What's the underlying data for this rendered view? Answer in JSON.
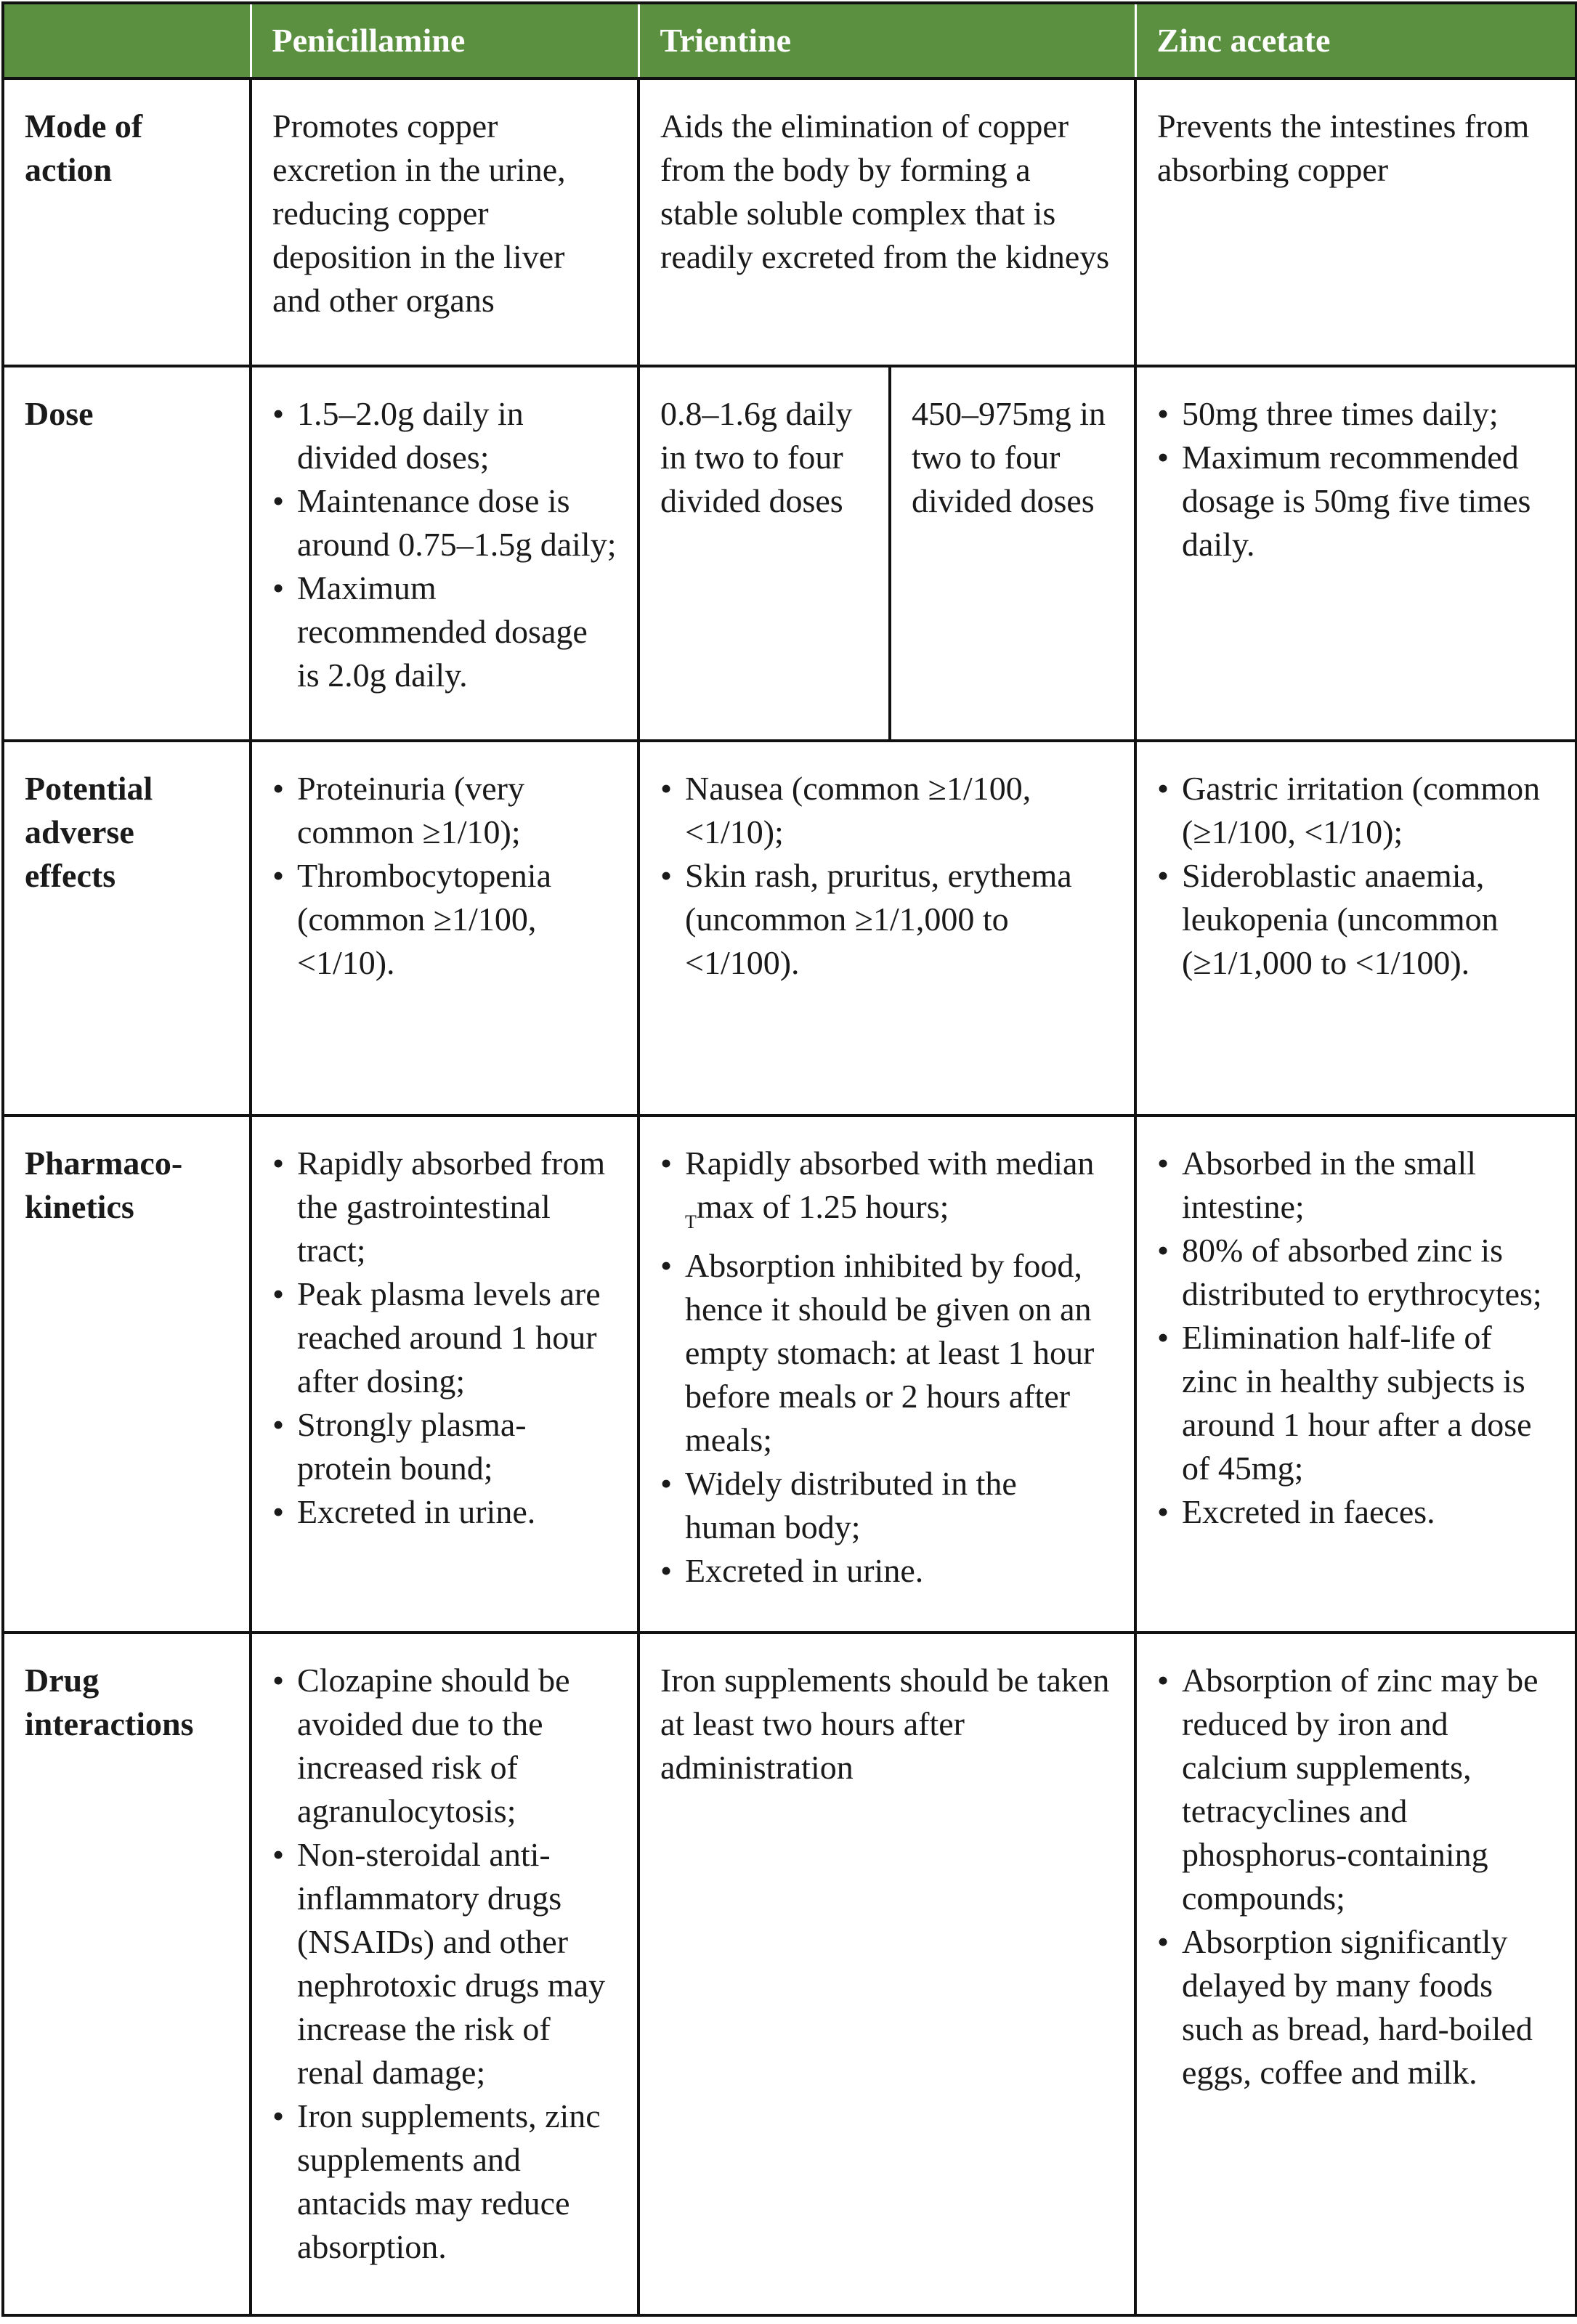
{
  "header": {
    "corner": "",
    "columns": [
      "Penicillamine",
      "Trientine",
      "Zinc acetate"
    ]
  },
  "rows": [
    {
      "label": "Mode of action",
      "cells": [
        {
          "text": "Promotes copper excretion in the urine, reducing copper deposition in the liver and other organs"
        },
        {
          "text": "Aids the elimination of copper from the body by forming a stable soluble complex that is readily excreted from the kidneys"
        },
        {
          "text": "Prevents the intestines from absorbing copper"
        }
      ]
    },
    {
      "label": "Dose",
      "cells": [
        {
          "bullets": [
            "1.5–2.0g daily in divided doses;",
            "Maintenance dose is around 0.75–1.5g daily;",
            "Maximum recommended dosage is 2.0g daily."
          ]
        },
        {
          "split": [
            "0.8–1.6g daily in two to four divided doses",
            "450–975mg in two to four divided doses"
          ]
        },
        {
          "bullets": [
            "50mg three times daily;",
            "Maximum recommended dosage is 50mg five times daily."
          ]
        }
      ]
    },
    {
      "label": "Potential adverse effects",
      "cells": [
        {
          "bullets": [
            "Proteinuria (very common ≥1/10);",
            "Thrombocytopenia (common ≥1/100, <1/10)."
          ]
        },
        {
          "bullets": [
            "Nausea (common ≥1/100, <1/10);",
            "Skin rash, pruritus, erythema (uncommon ≥1/1,000 to <1/100)."
          ]
        },
        {
          "bullets": [
            "Gastric irritation (common (≥1/100, <1/10);",
            "Sideroblastic anaemia, leukopenia (uncommon (≥1/1,000 to <1/100)."
          ]
        }
      ]
    },
    {
      "label": "Pharmaco-kinetics",
      "cells": [
        {
          "bullets": [
            "Rapidly absorbed from the gastrointestinal tract;",
            "Peak plasma levels are reached around 1 hour after dosing;",
            "Strongly plasma-protein bound;",
            "Excreted in urine."
          ]
        },
        {
          "bullets": [
            "Rapidly absorbed with median Tmax of 1.25 hours;",
            "Absorption inhibited by food, hence it should be given on an empty stomach: at least 1 hour before meals or 2 hours after meals;",
            "Widely distributed in the human body;",
            "Excreted in urine."
          ]
        },
        {
          "bullets": [
            "Absorbed in the small intestine;",
            "80% of absorbed zinc is distributed to erythrocytes;",
            "Elimination half-life of zinc in healthy subjects is around 1 hour after a dose of 45mg;",
            "Excreted in faeces."
          ]
        }
      ]
    },
    {
      "label": "Drug interactions",
      "cells": [
        {
          "bullets": [
            "Clozapine should be avoided due to the increased risk of agranulocytosis;",
            "Non-steroidal anti-inflammatory drugs (NSAIDs) and other nephrotoxic drugs may increase the risk of renal damage;",
            "Iron supplements, zinc supplements and antacids may reduce absorption."
          ]
        },
        {
          "text": "Iron supplements should be taken at least two hours after administration"
        },
        {
          "bullets": [
            "Absorption of zinc may be reduced by iron and calcium supplements, tetracyclines and phosphorus-containing compounds;",
            "Absorption significantly delayed by many foods such as bread, hard-boiled eggs, coffee and milk."
          ]
        }
      ]
    }
  ],
  "colors": {
    "header_bg": "#5a9040",
    "header_text": "#ffffff",
    "border": "#111111"
  }
}
